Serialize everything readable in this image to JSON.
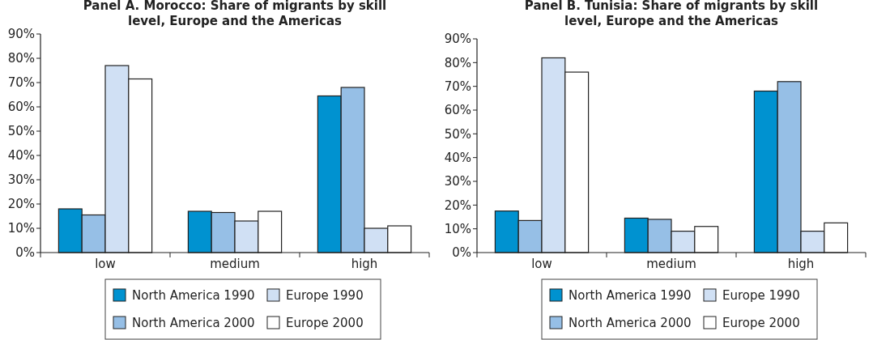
{
  "chart_data": [
    {
      "type": "bar",
      "title": "Panel A. Morocco: Share of migrants by skill level, Europe and the Americas",
      "categories": [
        "low",
        "medium",
        "high"
      ],
      "series": [
        {
          "name": "North America 1990",
          "color": "#0092d0",
          "values": [
            18,
            17,
            64.5
          ]
        },
        {
          "name": "North America 2000",
          "color": "#96bfe6",
          "values": [
            15.5,
            16.5,
            68
          ]
        },
        {
          "name": "Europe 1990",
          "color": "#d0e0f4",
          "values": [
            77,
            13,
            10
          ]
        },
        {
          "name": "Europe 2000",
          "color": "#ffffff",
          "values": [
            71.5,
            17,
            11
          ]
        }
      ],
      "ylim": [
        0,
        90
      ],
      "yticks": [
        {
          "value": 0,
          "label": "0%"
        },
        {
          "value": 10,
          "label": "10%"
        },
        {
          "value": 20,
          "label": "20%"
        },
        {
          "value": 30,
          "label": "30%"
        },
        {
          "value": 40,
          "label": "40%"
        },
        {
          "value": 50,
          "label": "50%"
        },
        {
          "value": 60,
          "label": "60%"
        },
        {
          "value": 70,
          "label": "70%"
        },
        {
          "value": 80,
          "label": "80%"
        },
        {
          "value": 90,
          "label": "90%"
        }
      ],
      "legend": "bottom"
    },
    {
      "type": "bar",
      "title": "Panel B. Tunisia: Share of migrants by skill level, Europe and the Americas",
      "categories": [
        "low",
        "medium",
        "high"
      ],
      "series": [
        {
          "name": "North America 1990",
          "color": "#0092d0",
          "values": [
            17.5,
            14.5,
            68
          ]
        },
        {
          "name": "North America 2000",
          "color": "#96bfe6",
          "values": [
            13.5,
            14,
            72
          ]
        },
        {
          "name": "Europe 1990",
          "color": "#d0e0f4",
          "values": [
            82,
            9,
            9
          ]
        },
        {
          "name": "Europe 2000",
          "color": "#ffffff",
          "values": [
            76,
            11,
            12.5
          ]
        }
      ],
      "ylim": [
        0,
        90
      ],
      "yticks": [
        {
          "value": 0,
          "label": "0%"
        },
        {
          "value": 10,
          "label": "10%"
        },
        {
          "value": 20,
          "label": "20%"
        },
        {
          "value": 30,
          "label": "30%"
        },
        {
          "value": 40,
          "label": "40%"
        },
        {
          "value": 50,
          "label": "50%"
        },
        {
          "value": 60,
          "label": "60%"
        },
        {
          "value": 70,
          "label": "70%"
        },
        {
          "value": 80,
          "label": "80%"
        },
        {
          "value": 90,
          "label": "90%"
        }
      ],
      "legend": "bottom"
    }
  ]
}
